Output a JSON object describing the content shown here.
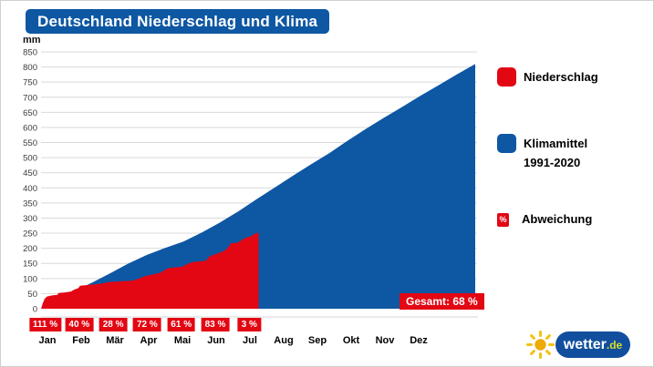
{
  "colors": {
    "blue": "#0d57a3",
    "red": "#e30613",
    "grid": "#d9d9d9",
    "axis_text": "#3c3c3c"
  },
  "chart_data": {
    "type": "area",
    "title": "Deutschland Niederschlag und Klima",
    "ylabel": "mm",
    "ylim": [
      0,
      850
    ],
    "ytick_step": 50,
    "yticks": [
      0,
      50,
      100,
      150,
      200,
      250,
      300,
      350,
      400,
      450,
      500,
      550,
      600,
      650,
      700,
      750,
      800,
      850
    ],
    "grid": true,
    "months": [
      "Jan",
      "Feb",
      "Mär",
      "Apr",
      "Mai",
      "Jun",
      "Jul",
      "Aug",
      "Sep",
      "Okt",
      "Nov",
      "Dez"
    ],
    "deviation_labels": [
      "111 %",
      "40 %",
      "28 %",
      "72 %",
      "61 %",
      "83 %",
      "3 %"
    ],
    "monthly_deviation_pct": [
      111,
      40,
      28,
      72,
      61,
      83,
      3
    ],
    "total_deviation_label": "Gesamt: 68 %",
    "total_deviation_pct": 68,
    "series": [
      {
        "name": "Klimamittel 1991-2020",
        "color": "#0d57a3",
        "monthly_cumulative_mm": [
          58,
          118,
          178,
          222,
          285,
          362,
          440,
          515,
          595,
          668,
          740,
          810
        ],
        "points": [
          [
            0,
            0
          ],
          [
            0.04,
            28
          ],
          [
            0.076,
            58
          ],
          [
            0.12,
            88
          ],
          [
            0.16,
            118
          ],
          [
            0.2,
            149
          ],
          [
            0.244,
            178
          ],
          [
            0.286,
            201
          ],
          [
            0.328,
            222
          ],
          [
            0.37,
            252
          ],
          [
            0.412,
            285
          ],
          [
            0.454,
            322
          ],
          [
            0.496,
            362
          ],
          [
            0.538,
            401
          ],
          [
            0.58,
            440
          ],
          [
            0.622,
            478
          ],
          [
            0.664,
            515
          ],
          [
            0.706,
            556
          ],
          [
            0.748,
            595
          ],
          [
            0.79,
            632
          ],
          [
            0.832,
            668
          ],
          [
            0.874,
            705
          ],
          [
            0.916,
            740
          ],
          [
            0.958,
            776
          ],
          [
            1,
            810
          ]
        ]
      },
      {
        "name": "Niederschlag",
        "color": "#e30613",
        "cutoff": 0.501,
        "monthly_cumulative_mm": [
          62,
          89,
          112,
          148,
          182,
          246,
          252
        ],
        "points": [
          [
            0,
            0
          ],
          [
            0.004,
            18
          ],
          [
            0.008,
            32
          ],
          [
            0.013,
            40
          ],
          [
            0.025,
            44
          ],
          [
            0.038,
            46
          ],
          [
            0.04,
            52
          ],
          [
            0.055,
            54
          ],
          [
            0.069,
            57
          ],
          [
            0.076,
            63
          ],
          [
            0.086,
            68
          ],
          [
            0.09,
            76
          ],
          [
            0.118,
            80
          ],
          [
            0.143,
            84
          ],
          [
            0.155,
            88
          ],
          [
            0.212,
            93
          ],
          [
            0.223,
            99
          ],
          [
            0.239,
            108
          ],
          [
            0.254,
            112
          ],
          [
            0.275,
            119
          ],
          [
            0.292,
            134
          ],
          [
            0.328,
            140
          ],
          [
            0.334,
            147
          ],
          [
            0.349,
            154
          ],
          [
            0.38,
            159
          ],
          [
            0.387,
            172
          ],
          [
            0.401,
            180
          ],
          [
            0.418,
            189
          ],
          [
            0.429,
            199
          ],
          [
            0.437,
            216
          ],
          [
            0.454,
            219
          ],
          [
            0.464,
            229
          ],
          [
            0.475,
            237
          ],
          [
            0.485,
            240
          ],
          [
            0.49,
            247
          ],
          [
            0.501,
            252
          ]
        ]
      }
    ],
    "legend_position": "right"
  },
  "legend": {
    "niederschlag": "Niederschlag",
    "klimamittel_line1": "Klimamittel",
    "klimamittel_line2": "1991-2020",
    "percent_symbol": "%",
    "abweichung": "Abweichung"
  },
  "logo": {
    "brand": "wetter",
    "tld": ".de"
  }
}
